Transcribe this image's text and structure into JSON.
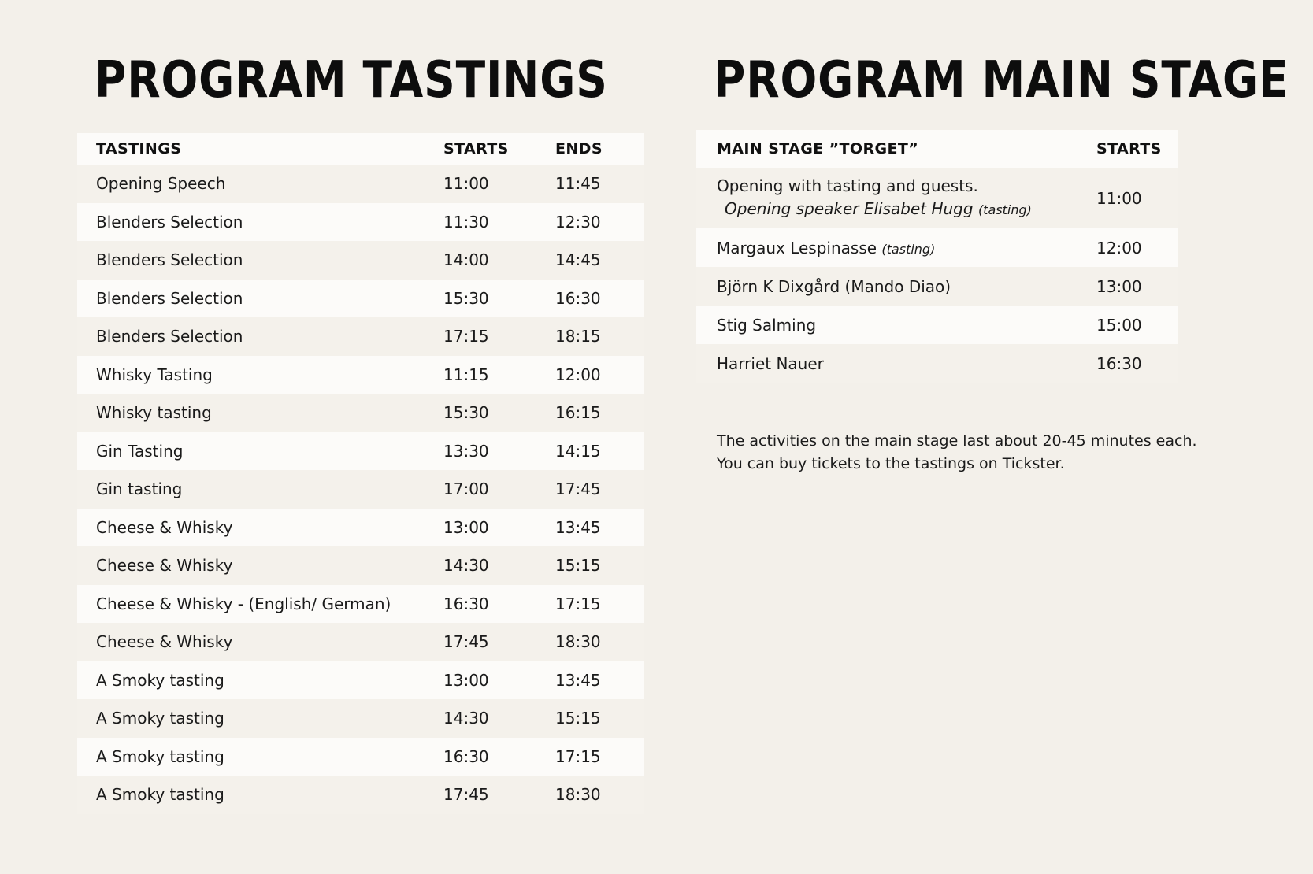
{
  "tastings_section": {
    "title": "PROGRAM TASTINGS",
    "headers": {
      "name": "TASTINGS",
      "starts": "STARTS",
      "ends": "ENDS"
    },
    "rows": [
      {
        "name": "Opening Speech",
        "starts": "11:00",
        "ends": "11:45"
      },
      {
        "name": "Blenders Selection",
        "starts": "11:30",
        "ends": "12:30"
      },
      {
        "name": "Blenders Selection",
        "starts": "14:00",
        "ends": "14:45"
      },
      {
        "name": "Blenders Selection",
        "starts": "15:30",
        "ends": "16:30"
      },
      {
        "name": "Blenders Selection",
        "starts": "17:15",
        "ends": "18:15"
      },
      {
        "name": "Whisky Tasting",
        "starts": "11:15",
        "ends": "12:00"
      },
      {
        "name": "Whisky tasting",
        "starts": "15:30",
        "ends": "16:15"
      },
      {
        "name": "Gin Tasting",
        "starts": "13:30",
        "ends": "14:15"
      },
      {
        "name": "Gin tasting",
        "starts": "17:00",
        "ends": "17:45"
      },
      {
        "name": "Cheese & Whisky",
        "starts": "13:00",
        "ends": "13:45"
      },
      {
        "name": "Cheese & Whisky",
        "starts": "14:30",
        "ends": "15:15"
      },
      {
        "name": "Cheese & Whisky - (English/ German)",
        "starts": "16:30",
        "ends": "17:15"
      },
      {
        "name": "Cheese & Whisky",
        "starts": "17:45",
        "ends": "18:30"
      },
      {
        "name": "A Smoky tasting",
        "starts": "13:00",
        "ends": "13:45"
      },
      {
        "name": "A Smoky tasting",
        "starts": "14:30",
        "ends": "15:15"
      },
      {
        "name": "A Smoky tasting",
        "starts": "16:30",
        "ends": "17:15"
      },
      {
        "name": "A Smoky tasting",
        "starts": "17:45",
        "ends": "18:30"
      }
    ]
  },
  "main_stage_section": {
    "title": "PROGRAM MAIN STAGE",
    "headers": {
      "name": "MAIN STAGE ”TORGET”",
      "starts": "STARTS"
    },
    "rows": [
      {
        "name": "Opening with tasting and guests.",
        "sub": "Opening speaker Elisabet Hugg",
        "note": "(tasting)",
        "starts": "11:00"
      },
      {
        "name": "Margaux Lespinasse",
        "note": "(tasting)",
        "starts": "12:00"
      },
      {
        "name": "Björn K Dixgård (Mando Diao)",
        "starts": "13:00"
      },
      {
        "name": "Stig Salming",
        "starts": "15:00"
      },
      {
        "name": "Harriet Nauer",
        "starts": "16:30"
      }
    ],
    "footnote_lines": [
      "The activities on the main stage last about 20-45 minutes each.",
      "You can buy tickets to the tastings on Tickster."
    ]
  }
}
